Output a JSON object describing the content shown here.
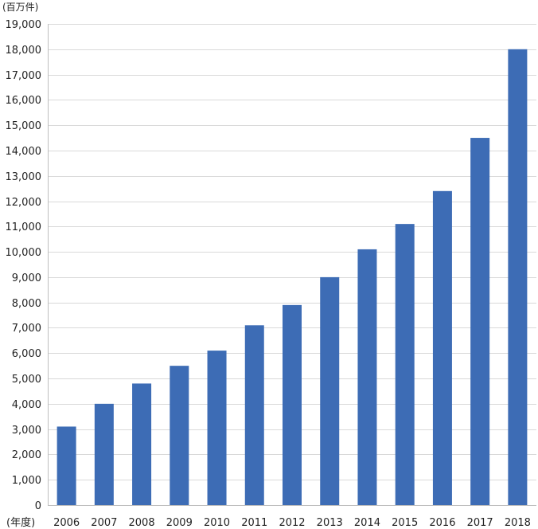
{
  "chart_data": {
    "type": "bar",
    "title": "",
    "ylabel": "(百万件)",
    "xlabel": "(年度)",
    "categories": [
      "2006",
      "2007",
      "2008",
      "2009",
      "2010",
      "2011",
      "2012",
      "2013",
      "2014",
      "2015",
      "2016",
      "2017",
      "2018"
    ],
    "values": [
      3100,
      4000,
      4800,
      5500,
      6100,
      7100,
      7900,
      9000,
      10100,
      11100,
      12400,
      14500,
      18000
    ],
    "ylim": [
      0,
      19000
    ],
    "yticks": [
      0,
      1000,
      2000,
      3000,
      4000,
      5000,
      6000,
      7000,
      8000,
      9000,
      10000,
      11000,
      12000,
      13000,
      14000,
      15000,
      16000,
      17000,
      18000,
      19000
    ],
    "ytick_labels": [
      "0",
      "1,000",
      "2,000",
      "3,000",
      "4,000",
      "5,000",
      "6,000",
      "7,000",
      "8,000",
      "9,000",
      "10,000",
      "11,000",
      "12,000",
      "13,000",
      "14,000",
      "15,000",
      "16,000",
      "17,000",
      "18,000",
      "19,000"
    ],
    "grid": true,
    "legend": "none",
    "bar_color": "#3d6cb5",
    "grid_color": "#d9d9d9",
    "axis_color": "#bfbfbf"
  }
}
